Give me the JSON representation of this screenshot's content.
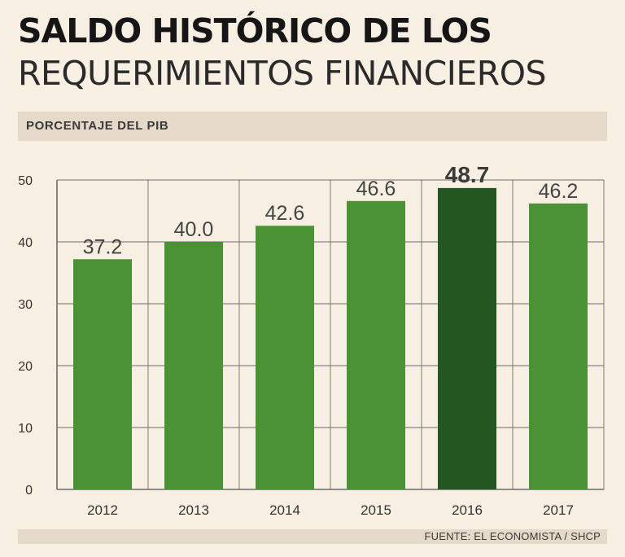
{
  "header": {
    "title_line1": "SALDO HISTÓRICO DE LOS",
    "title_line2": "REQUERIMIENTOS FINANCIEROS",
    "subtitle": "PORCENTAJE DEL PIB"
  },
  "source": "FUENTE: EL ECONOMISTA / SHCP",
  "colors": {
    "bar": "#4a9233",
    "highlight_bar": "#235621",
    "background": "#f8efe3",
    "grid": "#6b6b6b"
  },
  "chart_data": {
    "type": "bar",
    "categories": [
      "2012",
      "2013",
      "2014",
      "2015",
      "2016",
      "2017"
    ],
    "values": [
      37.2,
      40.0,
      42.6,
      46.6,
      48.7,
      46.2
    ],
    "value_labels": [
      "37.2",
      "40.0",
      "42.6",
      "46.6",
      "48.7",
      "46.2"
    ],
    "highlight_index": 4,
    "title": "SALDO HISTÓRICO DE LOS REQUERIMIENTOS FINANCIEROS",
    "subtitle": "PORCENTAJE DEL PIB",
    "xlabel": "",
    "ylabel": "",
    "ylim": [
      0,
      50
    ],
    "yticks": [
      0,
      10,
      20,
      30,
      40,
      50
    ],
    "grid": true
  }
}
